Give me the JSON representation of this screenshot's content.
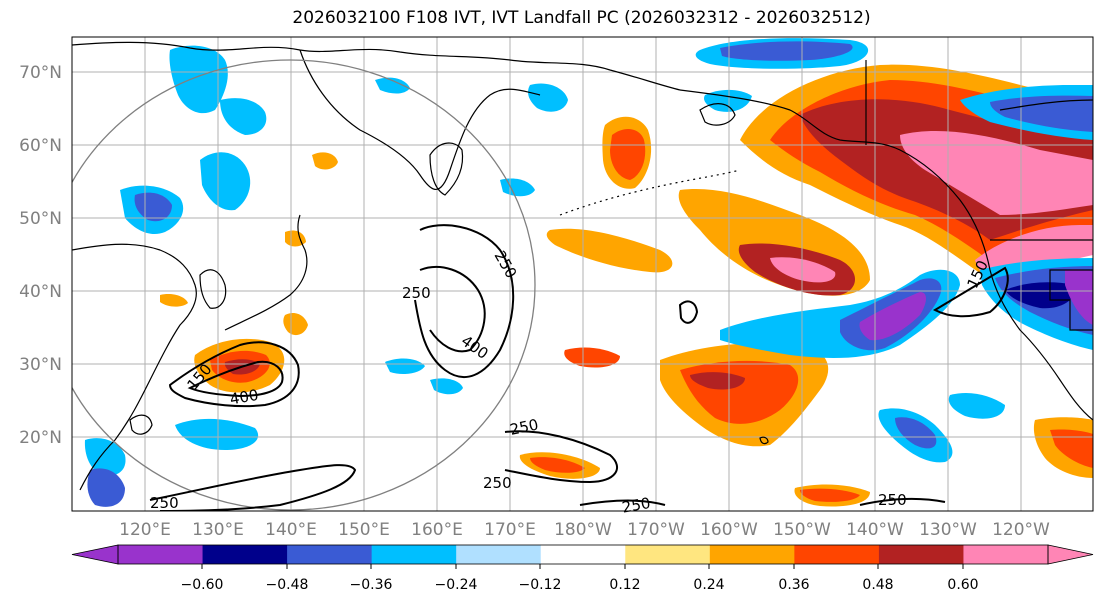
{
  "title": "2026032100 F108 IVT, IVT Landfall PC (2026032312 - 2026032512)",
  "map": {
    "lat_labels": [
      "70°N",
      "60°N",
      "50°N",
      "40°N",
      "30°N",
      "20°N"
    ],
    "lon_labels": [
      "120°E",
      "130°E",
      "140°E",
      "150°E",
      "160°E",
      "170°E",
      "180°W",
      "170°W",
      "160°W",
      "150°W",
      "140°W",
      "130°W",
      "120°W"
    ],
    "contour_labels": [
      "250",
      "250",
      "400",
      "150",
      "400",
      "250",
      "250",
      "250",
      "250",
      "250",
      "150"
    ],
    "colors": {
      "land_outline": "#000000",
      "grid": "#b0b0b0",
      "circle": "#808080",
      "label": "#808080"
    }
  },
  "colorbar": {
    "tick_labels": [
      "−0.60",
      "−0.48",
      "−0.36",
      "−0.24",
      "−0.12",
      "0.12",
      "0.24",
      "0.36",
      "0.48",
      "0.60"
    ],
    "colors": [
      "#9933cc",
      "#00008b",
      "#3a5bd4",
      "#00bfff",
      "#b0e0ff",
      "#ffffff",
      "#ffe680",
      "#ffa500",
      "#ff4500",
      "#b22222",
      "#ff85b5"
    ]
  }
}
